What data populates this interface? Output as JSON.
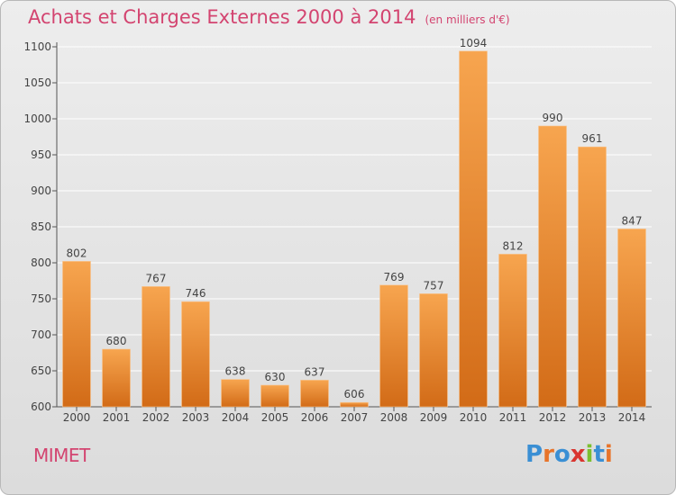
{
  "title": "Achats et Charges Externes 2000 à 2014",
  "subtitle": "(en milliers d'€)",
  "commune": "MIMET",
  "logo_text": "Proxiti",
  "logo_colors": [
    "#3a8fd4",
    "#e8742a",
    "#3a8fd4",
    "#d9352f",
    "#7bbf2f",
    "#3a8fd4",
    "#e8742a"
  ],
  "colors": {
    "bar_top": "#f7a54f",
    "bar_bottom": "#d26b17",
    "title": "#d34470",
    "grid": "#ffffff"
  },
  "chart_data": {
    "type": "bar",
    "categories": [
      "2000",
      "2001",
      "2002",
      "2003",
      "2004",
      "2005",
      "2006",
      "2007",
      "2008",
      "2009",
      "2010",
      "2011",
      "2012",
      "2013",
      "2014"
    ],
    "values": [
      802,
      680,
      767,
      746,
      638,
      630,
      637,
      606,
      769,
      757,
      1094,
      812,
      990,
      961,
      847
    ],
    "ylim": [
      600,
      1100
    ],
    "yticks": [
      600,
      650,
      700,
      750,
      800,
      850,
      900,
      950,
      1000,
      1050,
      1100
    ],
    "grid": true,
    "data_labels": true
  }
}
